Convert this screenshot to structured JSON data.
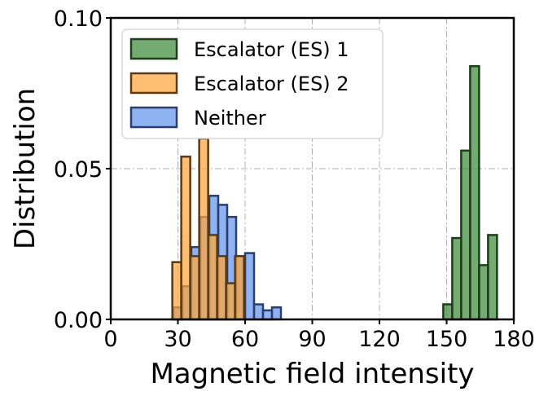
{
  "chart_data": {
    "type": "bar",
    "subtype": "histogram",
    "title": "",
    "xlabel": "Magnetic field intensity",
    "ylabel": "Distribution",
    "xlim": [
      0,
      180
    ],
    "ylim": [
      0,
      0.1
    ],
    "xticks": [
      0,
      30,
      60,
      90,
      120,
      150,
      180
    ],
    "xtick_labels": [
      "0",
      "30",
      "60",
      "90",
      "120",
      "150",
      "180"
    ],
    "yticks": [
      0,
      0.05,
      0.1
    ],
    "ytick_labels": [
      "0.00",
      "0.05",
      "0.10"
    ],
    "grid": true,
    "legend_position": "top-left",
    "series": [
      {
        "name": "Neither",
        "color": "#6495ed",
        "edge_color": "#2c3e6b",
        "bins": [
          {
            "x0": 28,
            "x1": 32,
            "value": 0.004
          },
          {
            "x0": 32,
            "x1": 36,
            "value": 0.011
          },
          {
            "x0": 36,
            "x1": 40,
            "value": 0.024
          },
          {
            "x0": 40,
            "x1": 44,
            "value": 0.034
          },
          {
            "x0": 44,
            "x1": 48,
            "value": 0.041
          },
          {
            "x0": 48,
            "x1": 52,
            "value": 0.038
          },
          {
            "x0": 52,
            "x1": 56,
            "value": 0.034
          },
          {
            "x0": 56,
            "x1": 60,
            "value": 0.021
          },
          {
            "x0": 60,
            "x1": 64,
            "value": 0.022
          },
          {
            "x0": 64,
            "x1": 68,
            "value": 0.005
          },
          {
            "x0": 68,
            "x1": 72,
            "value": 0.003
          },
          {
            "x0": 72,
            "x1": 76,
            "value": 0.004
          }
        ]
      },
      {
        "name": "Escalator (ES) 2",
        "color": "#ffa53a",
        "edge_color": "#5a3a14",
        "bins": [
          {
            "x0": 27.5,
            "x1": 31.5,
            "value": 0.019
          },
          {
            "x0": 31.5,
            "x1": 35.5,
            "value": 0.054
          },
          {
            "x0": 35.5,
            "x1": 39.5,
            "value": 0.021
          },
          {
            "x0": 39.5,
            "x1": 43.5,
            "value": 0.06
          },
          {
            "x0": 43.5,
            "x1": 47.5,
            "value": 0.028
          },
          {
            "x0": 47.5,
            "x1": 51.5,
            "value": 0.021
          },
          {
            "x0": 51.5,
            "x1": 55.5,
            "value": 0.012
          },
          {
            "x0": 55.5,
            "x1": 59.5,
            "value": 0.021
          }
        ]
      },
      {
        "name": "Escalator (ES) 1",
        "color": "#3f8a3a",
        "edge_color": "#1e3d1b",
        "bins": [
          {
            "x0": 148.5,
            "x1": 152.5,
            "value": 0.005
          },
          {
            "x0": 152.5,
            "x1": 156.5,
            "value": 0.027
          },
          {
            "x0": 156.5,
            "x1": 160.5,
            "value": 0.056
          },
          {
            "x0": 160.5,
            "x1": 164.5,
            "value": 0.084
          },
          {
            "x0": 164.5,
            "x1": 168.5,
            "value": 0.018
          },
          {
            "x0": 168.5,
            "x1": 172.5,
            "value": 0.028
          }
        ]
      }
    ],
    "legend_order": [
      "Escalator (ES) 1",
      "Escalator (ES) 2",
      "Neither"
    ]
  }
}
